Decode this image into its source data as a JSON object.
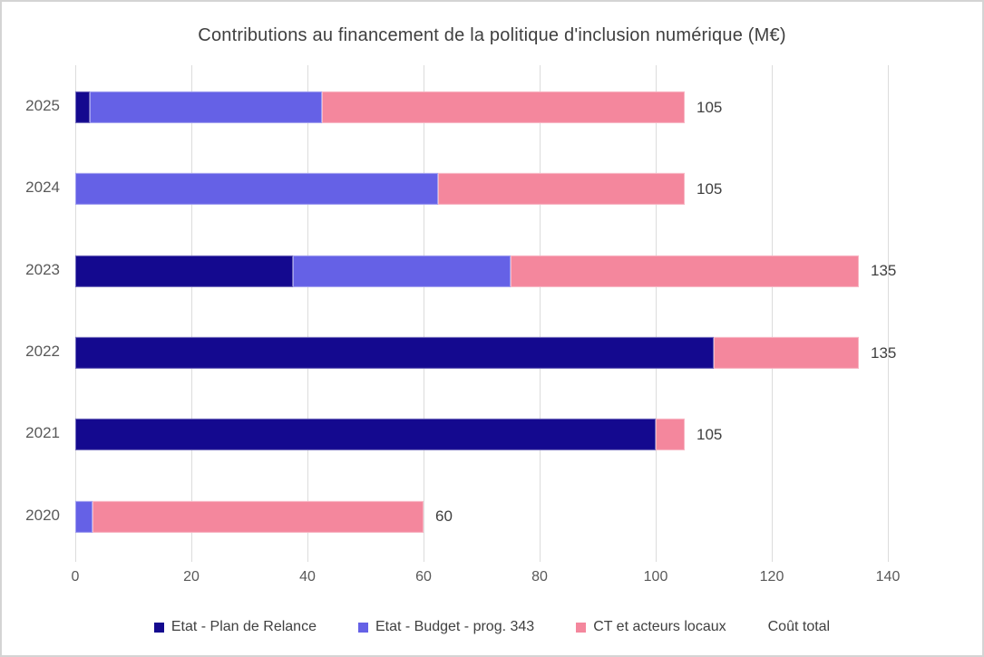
{
  "chart_data": {
    "type": "bar",
    "orientation": "horizontal",
    "stacked": true,
    "title": "Contributions au financement de la politique d'inclusion numérique (M€)",
    "categories": [
      "2025",
      "2024",
      "2023",
      "2022",
      "2021",
      "2020"
    ],
    "series": [
      {
        "name": "Etat - Plan de Relance",
        "color": "#14098f",
        "values": [
          2.5,
          0,
          37.5,
          110,
          100,
          0
        ]
      },
      {
        "name": "Etat - Budget - prog. 343",
        "color": "#6561e6",
        "values": [
          40,
          62.5,
          37.5,
          0,
          0,
          3
        ]
      },
      {
        "name": "CT et acteurs locaux",
        "color": "#f4879d",
        "values": [
          62.5,
          42.5,
          60,
          25,
          5,
          57
        ]
      }
    ],
    "totals_label": "Coût total",
    "totals": [
      105,
      105,
      135,
      135,
      105,
      60
    ],
    "xlim": [
      0,
      140
    ],
    "xticks": [
      0,
      20,
      40,
      60,
      80,
      100,
      120,
      140
    ],
    "grid": true,
    "legend_position": "bottom",
    "colors": {
      "title_text": "#3f3f3f",
      "axis_text": "#595959",
      "data_label_text": "#404040",
      "gridline": "#dcdcdc",
      "frame_border": "#d4d4d4"
    }
  }
}
